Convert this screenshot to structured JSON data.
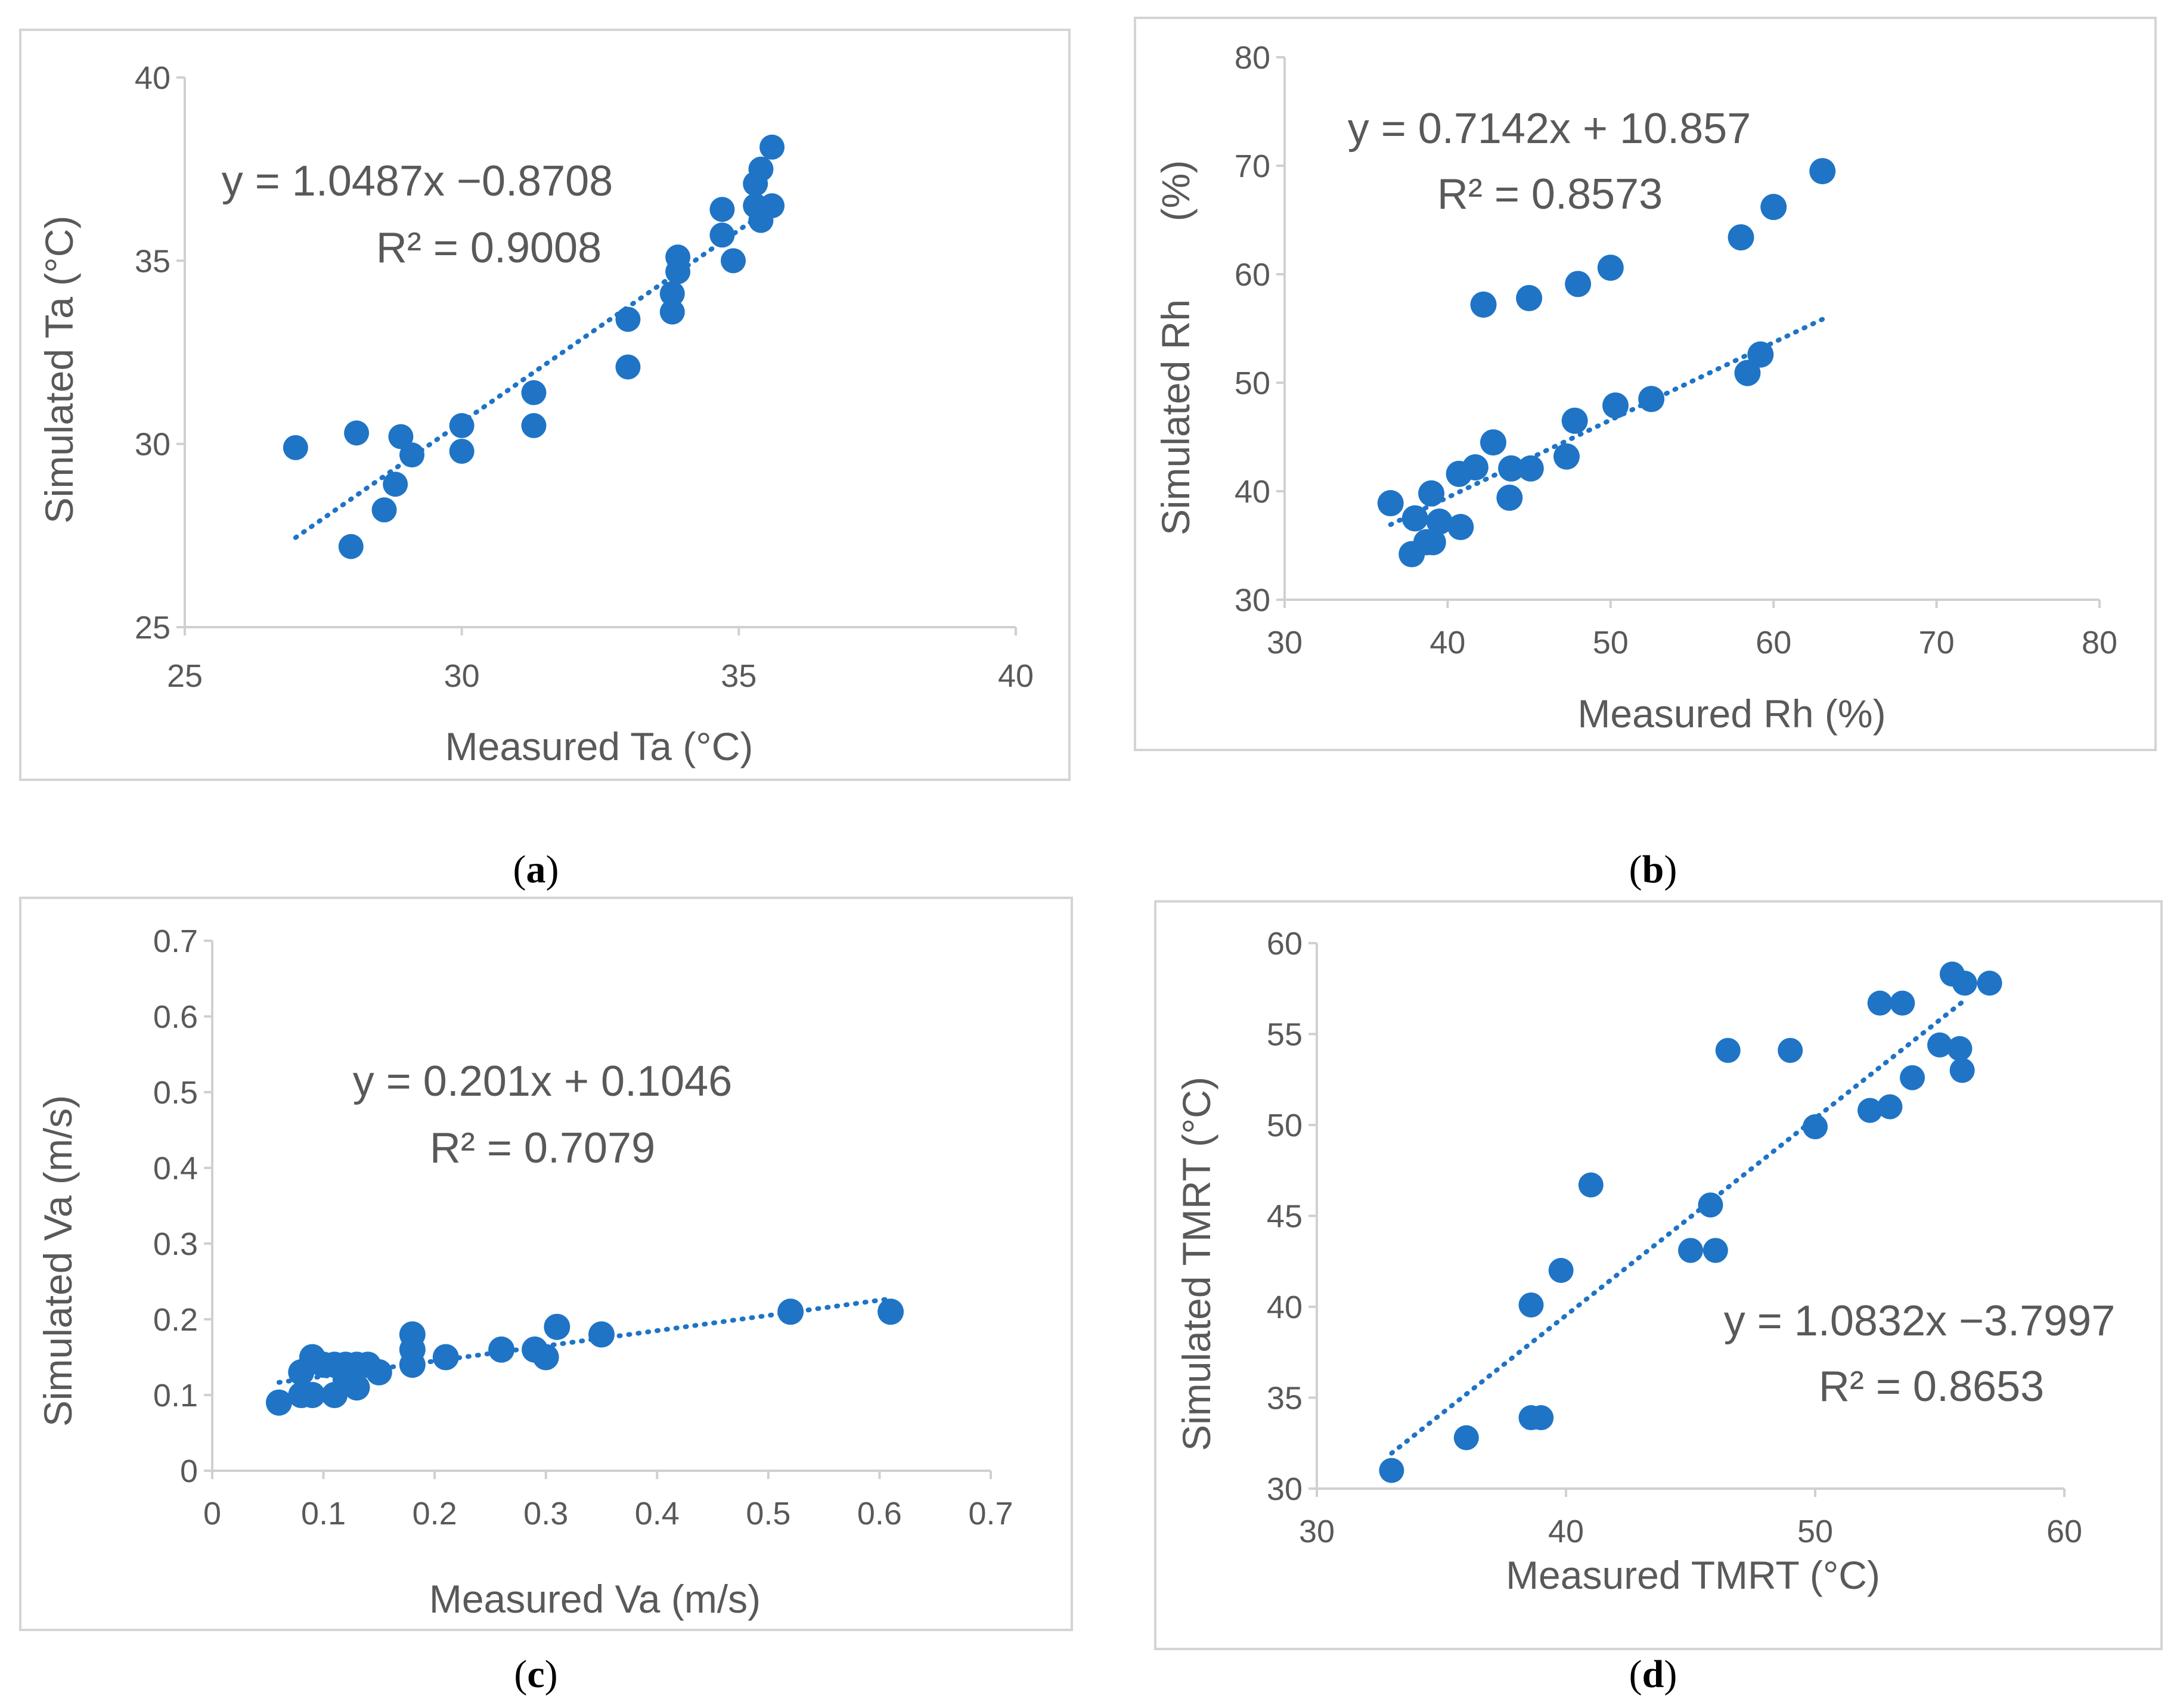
{
  "colors": {
    "marker": "#1f74c6",
    "trendline": "#1f74c6",
    "axis": "#d0d0d0",
    "text": "#595959"
  },
  "chart_data": [
    {
      "panel": "(a)",
      "type": "scatter",
      "xlabel": "Measured Ta (°C)",
      "ylabel": "Simulated Ta (°C)",
      "xlim": [
        25,
        40
      ],
      "ylim": [
        25,
        40
      ],
      "xticks": [
        "25",
        "30",
        "35",
        "40"
      ],
      "yticks": [
        "25",
        "30",
        "35",
        "40"
      ],
      "equation": "y = 1.0487x −0.8708",
      "r2": "R² = 0.9008",
      "trendline": {
        "slope": 1.0487,
        "intercept": -0.8708,
        "x_range": [
          27.0,
          35.6
        ]
      },
      "points": [
        [
          27.0,
          29.9
        ],
        [
          28.0,
          27.2
        ],
        [
          28.1,
          30.3
        ],
        [
          28.6,
          28.2
        ],
        [
          28.8,
          28.9
        ],
        [
          28.9,
          30.2
        ],
        [
          29.1,
          29.7
        ],
        [
          30.0,
          30.5
        ],
        [
          30.0,
          29.8
        ],
        [
          31.3,
          31.4
        ],
        [
          31.3,
          30.5
        ],
        [
          33.0,
          33.4
        ],
        [
          33.0,
          32.1
        ],
        [
          33.8,
          33.6
        ],
        [
          33.8,
          34.1
        ],
        [
          33.9,
          34.7
        ],
        [
          33.9,
          35.1
        ],
        [
          34.7,
          35.7
        ],
        [
          34.7,
          36.4
        ],
        [
          34.9,
          35.0
        ],
        [
          35.3,
          37.1
        ],
        [
          35.4,
          37.5
        ],
        [
          35.3,
          36.5
        ],
        [
          35.4,
          36.1
        ],
        [
          35.6,
          36.5
        ],
        [
          35.6,
          38.1
        ]
      ]
    },
    {
      "panel": "(b)",
      "type": "scatter",
      "xlabel": "Measured Rh (%)",
      "ylabel": "Simulated Rh",
      "ylabel_unit": "(%)",
      "xlim": [
        30,
        80
      ],
      "ylim": [
        30,
        80
      ],
      "xticks": [
        "30",
        "40",
        "50",
        "60",
        "70",
        "80"
      ],
      "yticks": [
        "30",
        "40",
        "50",
        "60",
        "70",
        "80"
      ],
      "equation": "y = 0.7142x + 10.857",
      "r2": "R² = 0.8573",
      "trendline": {
        "slope": 0.7142,
        "intercept": 10.857,
        "x_range": [
          36.5,
          63.0
        ]
      },
      "points": [
        [
          36.5,
          38.9
        ],
        [
          37.8,
          34.2
        ],
        [
          38.0,
          37.5
        ],
        [
          38.7,
          35.3
        ],
        [
          39.0,
          39.8
        ],
        [
          39.1,
          35.3
        ],
        [
          39.5,
          37.2
        ],
        [
          40.7,
          41.6
        ],
        [
          40.8,
          36.7
        ],
        [
          41.7,
          42.2
        ],
        [
          42.2,
          57.2
        ],
        [
          42.8,
          44.5
        ],
        [
          43.8,
          39.4
        ],
        [
          43.9,
          42.1
        ],
        [
          45.0,
          57.8
        ],
        [
          45.1,
          42.1
        ],
        [
          47.3,
          43.2
        ],
        [
          47.8,
          46.5
        ],
        [
          48.0,
          59.1
        ],
        [
          50.0,
          60.6
        ],
        [
          50.3,
          47.9
        ],
        [
          52.5,
          48.5
        ],
        [
          58.0,
          63.4
        ],
        [
          58.4,
          50.9
        ],
        [
          59.2,
          52.6
        ],
        [
          60.0,
          66.2
        ],
        [
          63.0,
          69.5
        ]
      ]
    },
    {
      "panel": "(c)",
      "type": "scatter",
      "xlabel": "Measured Va (m/s)",
      "ylabel": "Simulated Va (m/s)",
      "xlim": [
        0,
        0.7
      ],
      "ylim": [
        0,
        0.7
      ],
      "xticks": [
        "0",
        "0.1",
        "0.2",
        "0.3",
        "0.4",
        "0.5",
        "0.6",
        "0.7"
      ],
      "yticks": [
        "0",
        "0.1",
        "0.2",
        "0.3",
        "0.4",
        "0.5",
        "0.6",
        "0.7"
      ],
      "equation": "y = 0.201x + 0.1046",
      "r2": "R² = 0.7079",
      "trendline": {
        "slope": 0.201,
        "intercept": 0.1046,
        "x_range": [
          0.06,
          0.61
        ]
      },
      "points": [
        [
          0.06,
          0.09
        ],
        [
          0.08,
          0.1
        ],
        [
          0.08,
          0.13
        ],
        [
          0.09,
          0.15
        ],
        [
          0.09,
          0.1
        ],
        [
          0.1,
          0.14
        ],
        [
          0.11,
          0.1
        ],
        [
          0.11,
          0.14
        ],
        [
          0.12,
          0.14
        ],
        [
          0.12,
          0.12
        ],
        [
          0.13,
          0.11
        ],
        [
          0.13,
          0.14
        ],
        [
          0.14,
          0.14
        ],
        [
          0.15,
          0.13
        ],
        [
          0.18,
          0.18
        ],
        [
          0.18,
          0.16
        ],
        [
          0.18,
          0.14
        ],
        [
          0.21,
          0.15
        ],
        [
          0.26,
          0.16
        ],
        [
          0.29,
          0.16
        ],
        [
          0.3,
          0.15
        ],
        [
          0.31,
          0.19
        ],
        [
          0.35,
          0.18
        ],
        [
          0.52,
          0.21
        ],
        [
          0.61,
          0.21
        ]
      ]
    },
    {
      "panel": "(d)",
      "type": "scatter",
      "xlabel": "Measured TMRT (°C)",
      "ylabel": "Simulated TMRT (°C)",
      "xlim": [
        30,
        60
      ],
      "ylim": [
        30,
        60
      ],
      "xticks": [
        "30",
        "40",
        "50",
        "60"
      ],
      "yticks": [
        "30",
        "35",
        "40",
        "45",
        "50",
        "55",
        "60"
      ],
      "equation": "y = 1.0832x −3.7997",
      "r2": "R² = 0.8653",
      "trendline": {
        "slope": 1.0832,
        "intercept": -3.7997,
        "x_range": [
          33.0,
          56.0
        ]
      },
      "points": [
        [
          33.0,
          31.0
        ],
        [
          36.0,
          32.8
        ],
        [
          38.6,
          33.9
        ],
        [
          39.0,
          33.9
        ],
        [
          38.6,
          40.1
        ],
        [
          39.8,
          42.0
        ],
        [
          41.0,
          46.7
        ],
        [
          45.0,
          43.1
        ],
        [
          45.8,
          45.6
        ],
        [
          46.0,
          43.1
        ],
        [
          46.5,
          54.1
        ],
        [
          49.0,
          54.1
        ],
        [
          50.0,
          49.9
        ],
        [
          52.2,
          50.8
        ],
        [
          52.6,
          56.7
        ],
        [
          53.0,
          51.0
        ],
        [
          53.5,
          56.7
        ],
        [
          53.9,
          52.6
        ],
        [
          55.0,
          54.4
        ],
        [
          55.5,
          58.3
        ],
        [
          55.8,
          54.2
        ],
        [
          55.9,
          53.0
        ],
        [
          56.0,
          57.8
        ],
        [
          57.0,
          57.8
        ]
      ]
    }
  ]
}
